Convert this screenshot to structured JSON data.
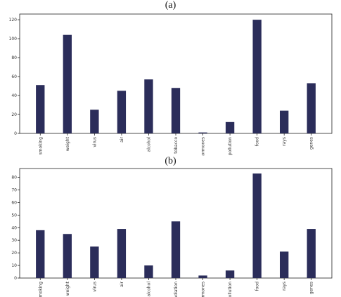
{
  "chart_data": [
    {
      "type": "bar",
      "panel_label": "(a)",
      "categories": [
        "smoking",
        "weight",
        "virus",
        "air",
        "alcohol",
        "tobacco",
        "hormones",
        "pollution",
        "food",
        "rays",
        "genes"
      ],
      "values": [
        51,
        104,
        25,
        45,
        57,
        48,
        1,
        12,
        120,
        24,
        53
      ],
      "yticks": [
        0,
        20,
        40,
        60,
        80,
        100,
        120
      ],
      "ylim": [
        0,
        126
      ],
      "color": "#2b2d5a"
    },
    {
      "type": "bar",
      "panel_label": "(b)",
      "categories": [
        "smoking",
        "weight",
        "virus",
        "air",
        "alcohol",
        "radiation",
        "hormones",
        "pollution",
        "food",
        "rays",
        "genes"
      ],
      "values": [
        38,
        35,
        25,
        39,
        10,
        45,
        2,
        6,
        83,
        21,
        39
      ],
      "yticks": [
        0,
        10,
        20,
        30,
        40,
        50,
        60,
        70,
        80
      ],
      "ylim": [
        0,
        87
      ],
      "color": "#2b2d5a"
    }
  ]
}
